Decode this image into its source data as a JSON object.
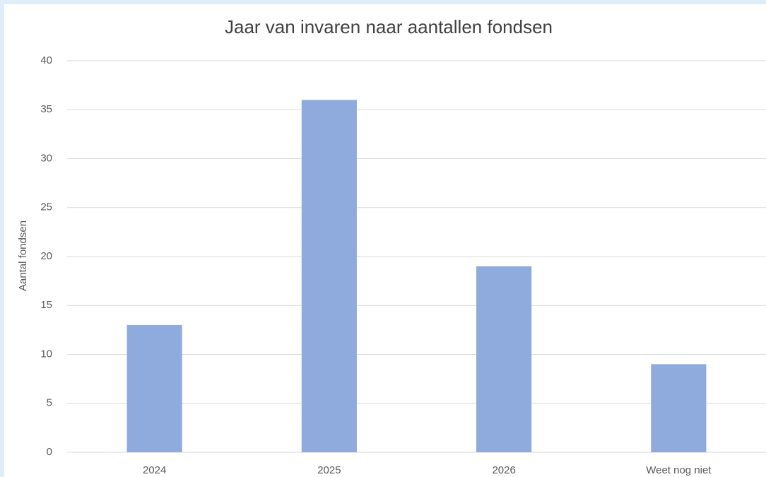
{
  "chart_data": {
    "type": "bar",
    "title": "Jaar van invaren naar aantallen fondsen",
    "y_label": "Aantal fondsen",
    "categories": [
      "2024",
      "2025",
      "2026",
      "Weet nog niet"
    ],
    "values": [
      13,
      36,
      19,
      9
    ],
    "color": "#8faadc",
    "ylim": [
      0,
      40
    ],
    "yticks": [
      0,
      5,
      10,
      15,
      20,
      25,
      30,
      35,
      40
    ],
    "grid": true
  }
}
